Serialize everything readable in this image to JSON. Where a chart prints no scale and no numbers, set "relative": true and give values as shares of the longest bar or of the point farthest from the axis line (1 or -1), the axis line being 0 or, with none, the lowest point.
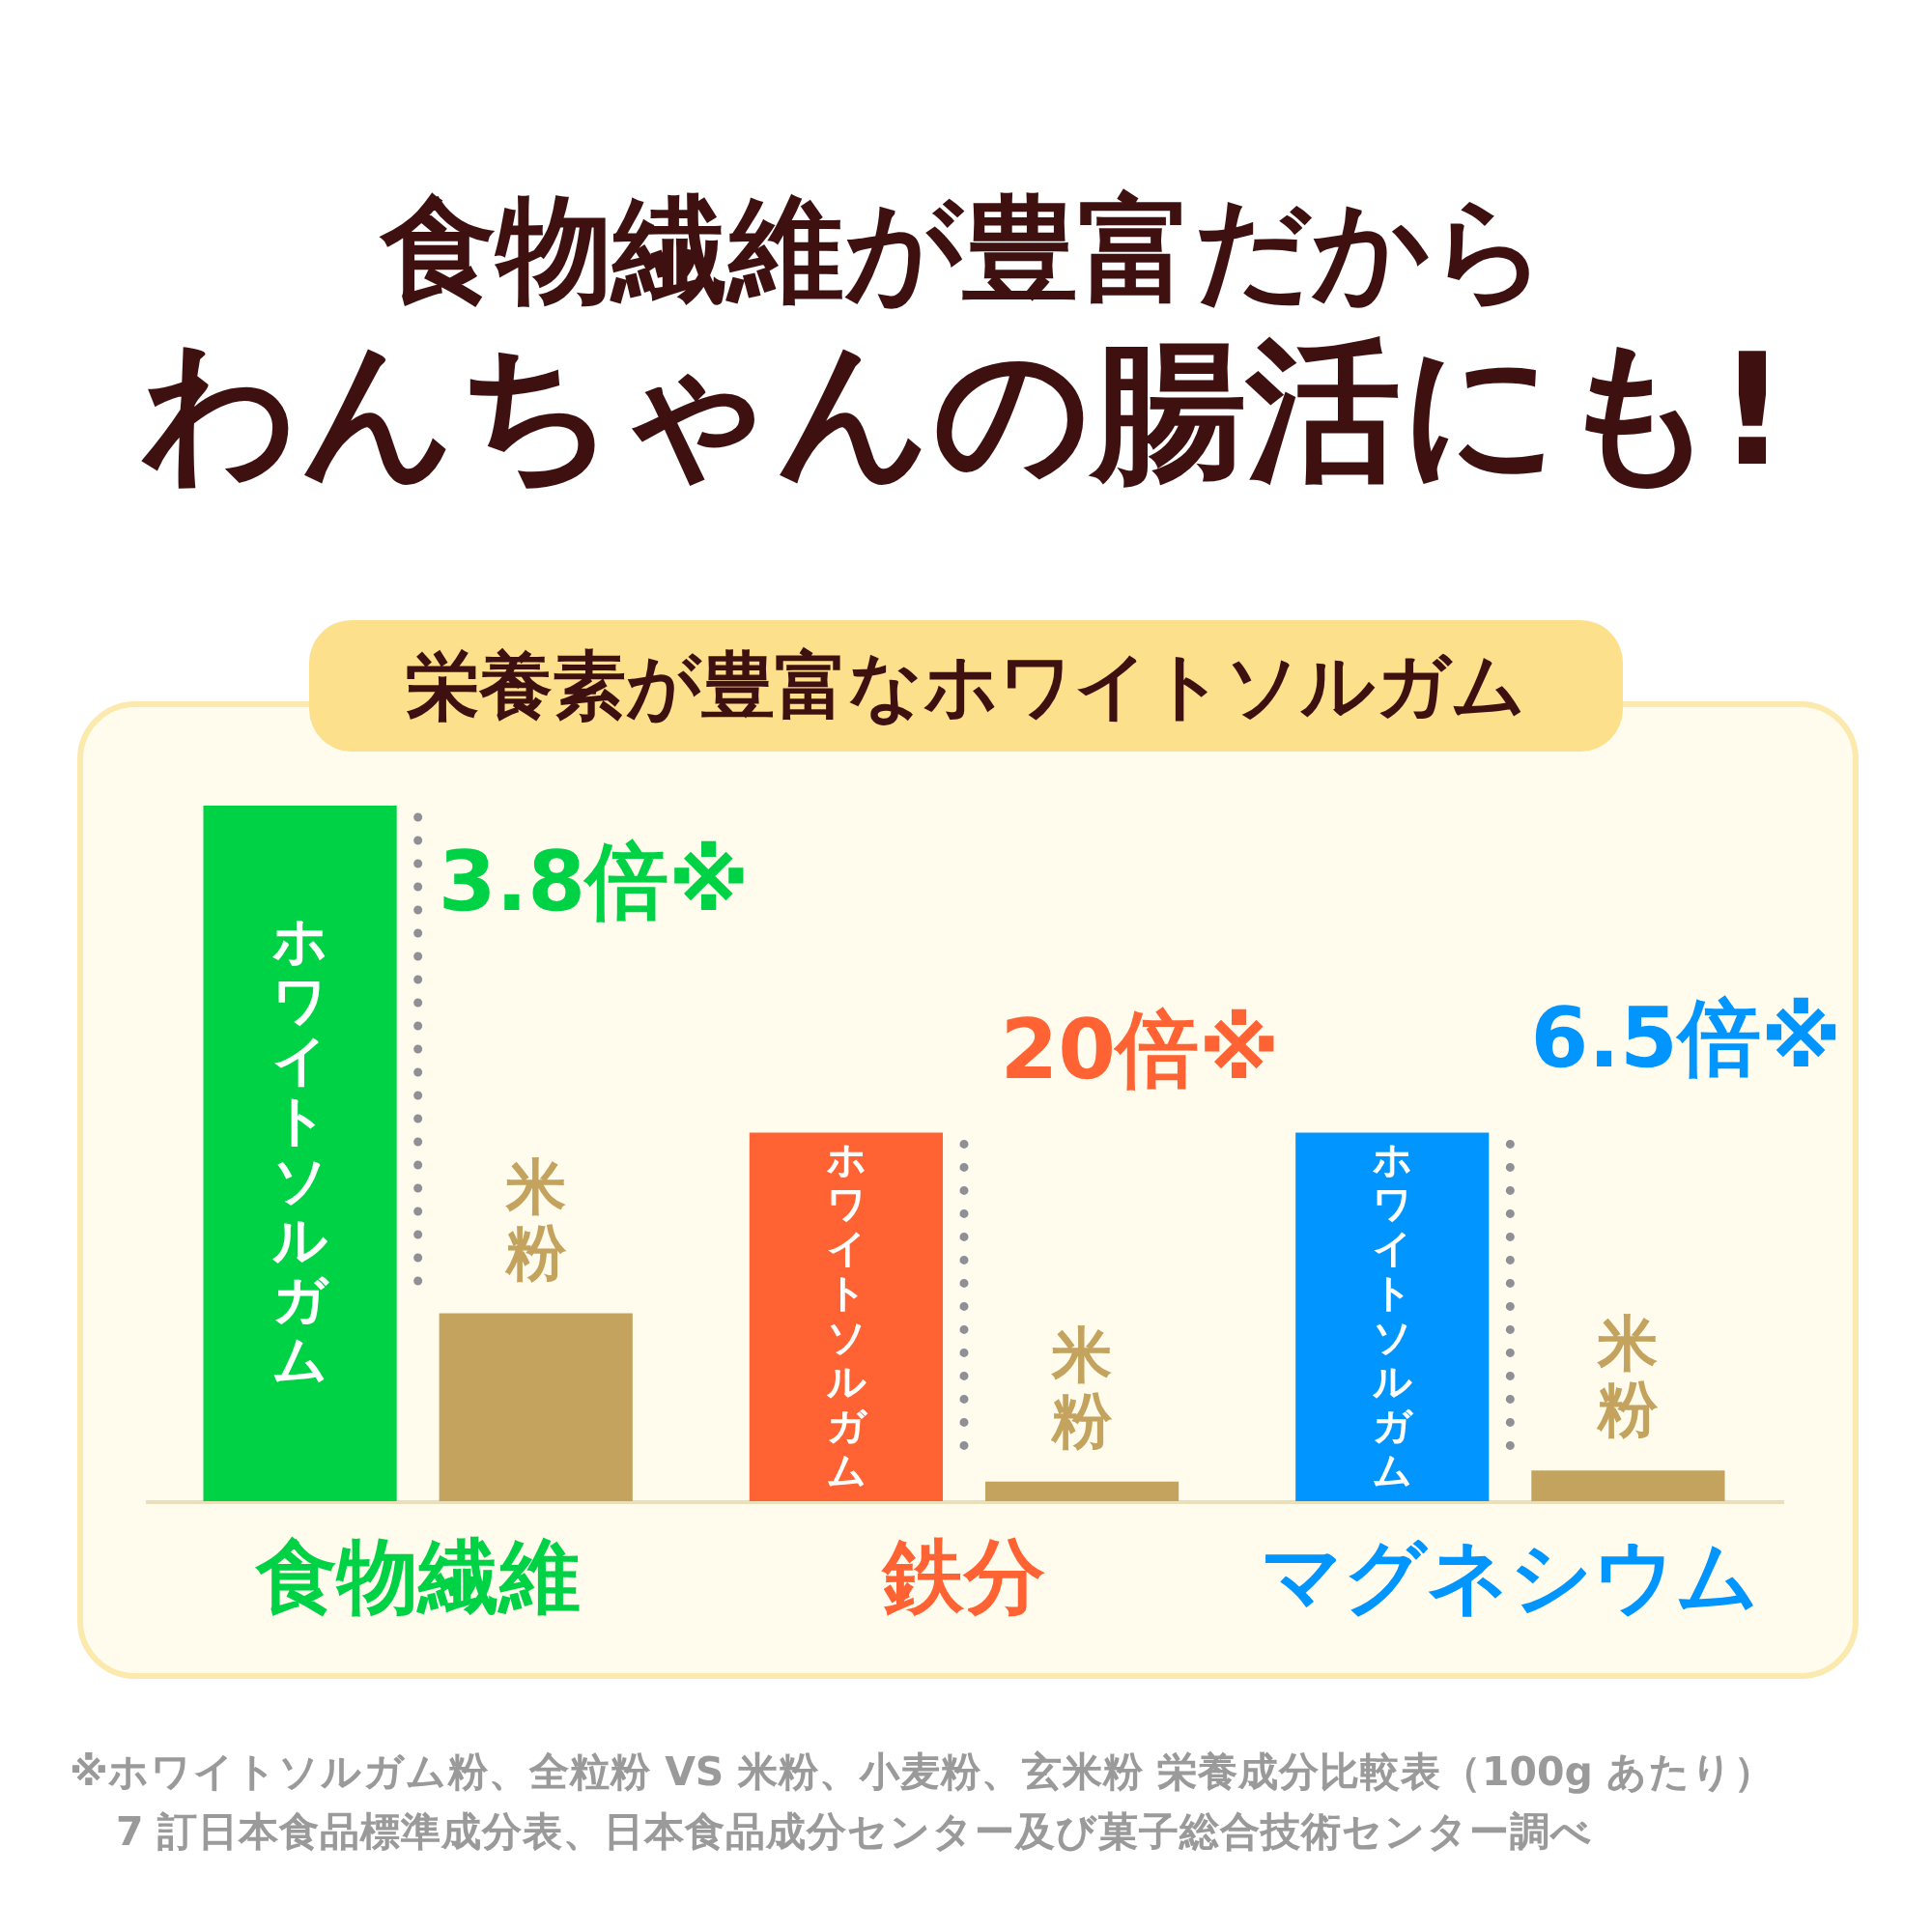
{
  "chart_data": {
    "type": "bar",
    "title": "食物繊維が豊富だから",
    "subtitle": "わんちゃんの腸活にも!",
    "categories": [
      "食物繊維",
      "鉄分",
      "マグネシウム"
    ],
    "relative": true,
    "series": [
      {
        "name": "ホワイトソルガム",
        "colors": [
          "#00d246",
          "#ff6233",
          "#0095ff"
        ],
        "values": [
          1,
          0.53,
          0.53
        ]
      },
      {
        "name": "米粉",
        "color": "#c4a35e",
        "values": [
          0.27,
          0.028,
          0.044
        ]
      }
    ],
    "annotations": [
      "栄養素が豊富なホワイトソルガム",
      "3.8倍※",
      "20倍※",
      "6.5倍※",
      "※ホワイトソルガム粉、全粒粉 VS 米粉、小麦粉、玄米粉 栄養成分比較表（100g あたり）",
      "7 訂日本食品標準成分表、日本食品成分センター及び菓子総合技術センター調べ"
    ]
  }
}
